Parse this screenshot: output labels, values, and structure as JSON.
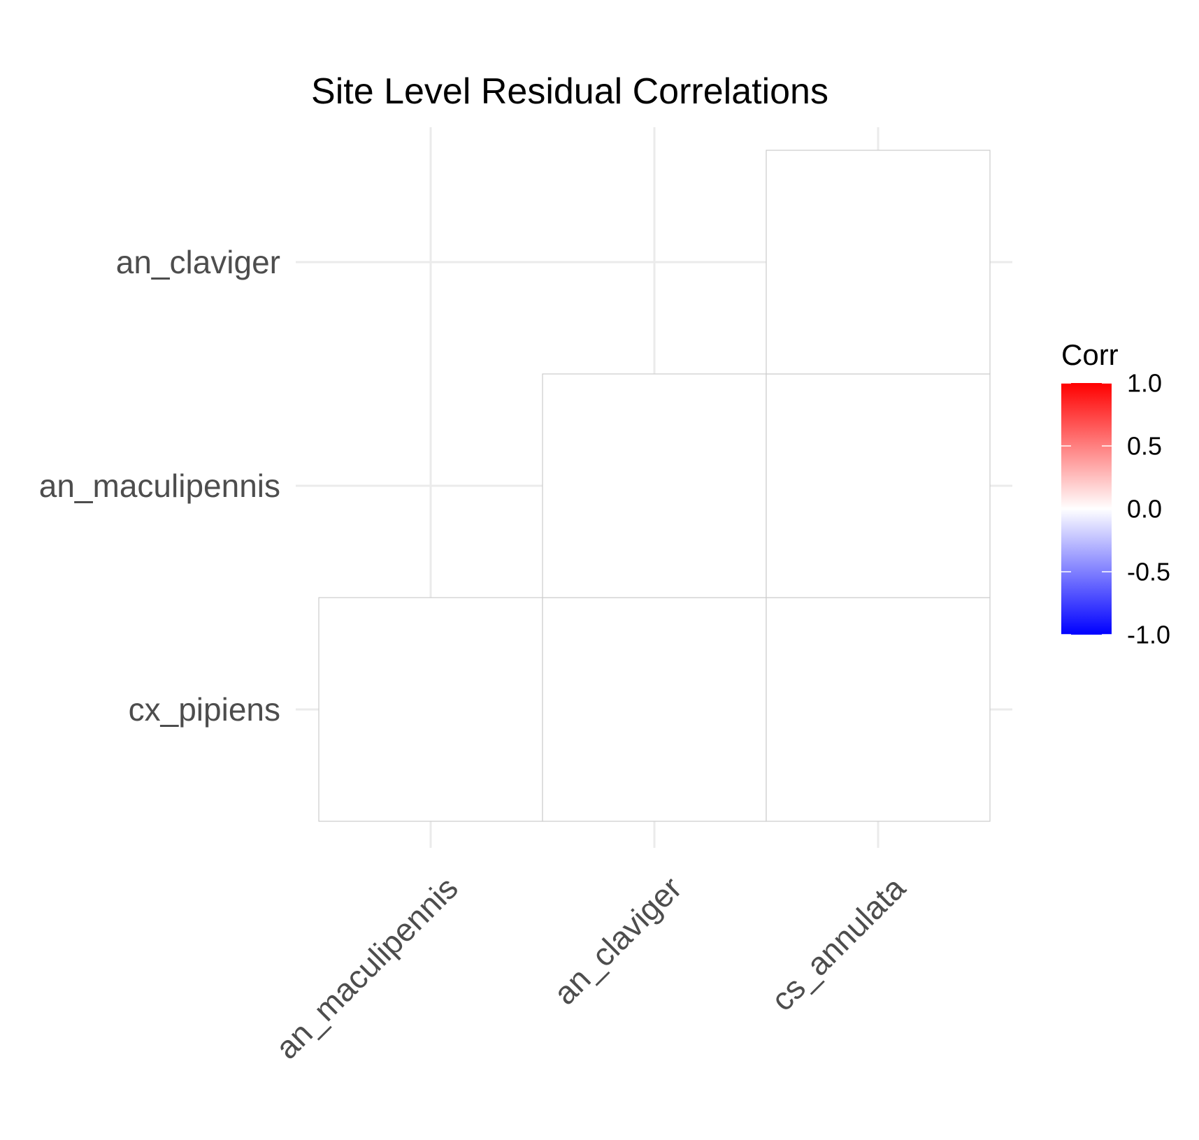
{
  "chart_data": {
    "type": "heatmap",
    "title": "Site Level Residual Correlations",
    "x_categories": [
      "an_maculipennis",
      "an_claviger",
      "cs_annulata"
    ],
    "y_categories": [
      "cx_pipiens",
      "an_maculipennis",
      "an_claviger"
    ],
    "cells": [
      {
        "x": "an_maculipennis",
        "y": "cx_pipiens",
        "value": 0.0
      },
      {
        "x": "an_claviger",
        "y": "cx_pipiens",
        "value": 0.0
      },
      {
        "x": "cs_annulata",
        "y": "cx_pipiens",
        "value": 0.0
      },
      {
        "x": "an_claviger",
        "y": "an_maculipennis",
        "value": 0.0
      },
      {
        "x": "cs_annulata",
        "y": "an_maculipennis",
        "value": 0.0
      },
      {
        "x": "cs_annulata",
        "y": "an_claviger",
        "value": 0.0
      }
    ],
    "legend": {
      "title": "Corr",
      "limits": [
        -1.0,
        1.0
      ],
      "tick_values": [
        1.0,
        0.5,
        0.0,
        -0.5,
        -1.0
      ],
      "tick_labels": [
        "1.0",
        "0.5",
        "0.0",
        "-0.5",
        "-1.0"
      ],
      "colors": {
        "low": "#0000ff",
        "mid": "#ffffff",
        "high": "#ff0000"
      },
      "position": "right"
    },
    "grid": true
  },
  "colors": {
    "grid": "#ebebeb",
    "tile_border": "#cccccc",
    "axis_text": "#4d4d4d",
    "title": "#000000"
  }
}
